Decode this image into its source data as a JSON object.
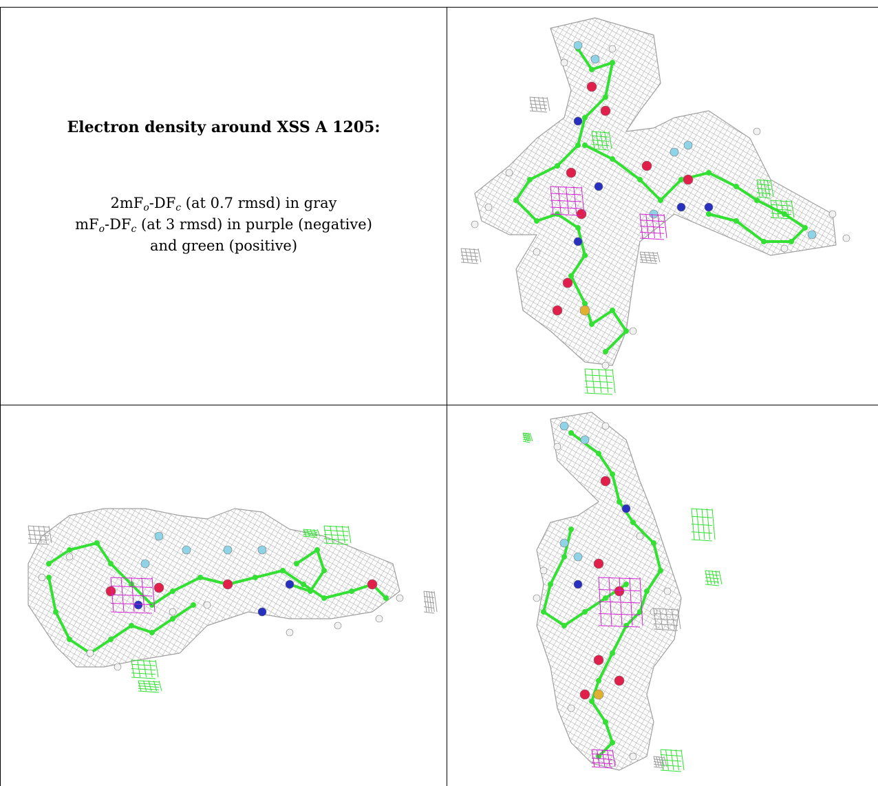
{
  "caption": {
    "title": "Electron density around XSS A 1205:",
    "line1": {
      "pre": "2mF",
      "sub1": "o",
      "mid": "-DF",
      "sub2": "c",
      "post": " (at 0.7 rmsd) in gray"
    },
    "line2": {
      "pre": "mF",
      "sub1": "o",
      "mid": "-DF",
      "sub2": "c",
      "post": " (at 3 rmsd) in purple (negative)"
    },
    "line3": "and green (positive)"
  },
  "colors": {
    "mesh_gray": "#9a9a9a",
    "carbon_green": "#33e033",
    "oxygen_red": "#e0204a",
    "nitrogen_blue": "#2830c0",
    "fluorine_cyan": "#8fd3e6",
    "sulfur_yellow": "#e0b030",
    "hydrogen_white": "#f2f2f2",
    "neg_purple": "#d020d0",
    "pos_green": "#30e030"
  },
  "views": [
    "view-top-right",
    "view-bottom-left",
    "view-bottom-right"
  ]
}
